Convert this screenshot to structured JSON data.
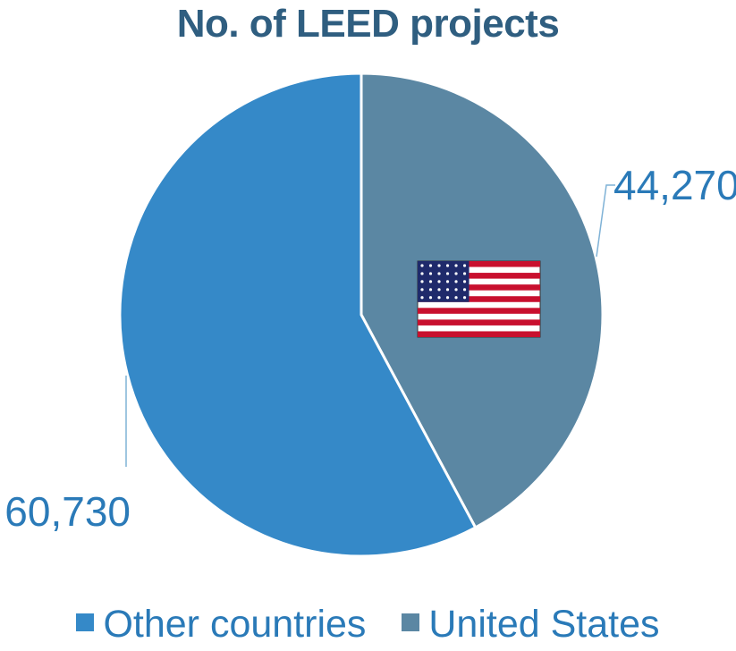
{
  "chart_data": {
    "type": "pie",
    "title": "No. of LEED projects",
    "slices": [
      {
        "label": "United States",
        "value": 44270,
        "value_label": "44,270",
        "color": "#5B87A3"
      },
      {
        "label": "Other countries",
        "value": 60730,
        "value_label": "60,730",
        "color": "#3589C8"
      }
    ],
    "legend": {
      "position": "bottom",
      "items": [
        "Other countries",
        "United States"
      ]
    },
    "icon": "us-flag-icon"
  }
}
